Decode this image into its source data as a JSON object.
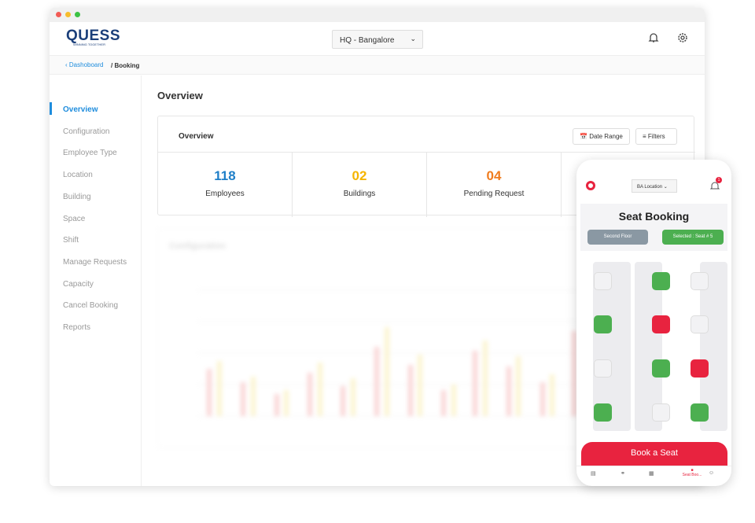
{
  "header": {
    "logo": "QUESS",
    "tagline": "WINNING TOGETHER",
    "location": "HQ - Bangalore"
  },
  "breadcrumb": {
    "parent": "Dashoboard",
    "current": "/ Booking"
  },
  "sidebar": {
    "items": [
      "Overview",
      "Configuration",
      "Employee Type",
      "Location",
      "Building",
      "Space",
      "Shift",
      "Manage Requests",
      "Capacity",
      "Cancel Booking",
      "Reports"
    ]
  },
  "main": {
    "title": "Overview",
    "card_title": "Overview",
    "date_range": "Date Range",
    "filters": "Filters",
    "stats": [
      {
        "value": "118",
        "label": "Employees"
      },
      {
        "value": "02",
        "label": "Buildings"
      },
      {
        "value": "04",
        "label": "Pending Request"
      }
    ],
    "chart_title": "Configuration"
  },
  "phone": {
    "location": "BA Location",
    "badge": "1",
    "title": "Seat Booking",
    "floor": "Second Floor",
    "selected": "Selected : Seat # 5",
    "button": "Book a Seat",
    "nav_active": "Seat Boo..."
  }
}
